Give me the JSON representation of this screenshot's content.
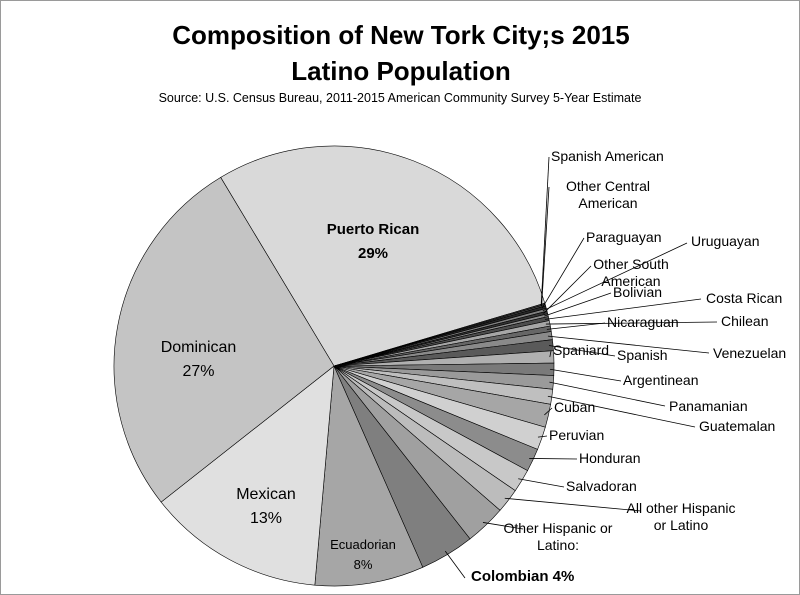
{
  "chart_data": {
    "type": "pie",
    "title": "Composition of New Tork City;s 2015 Latino Population",
    "subtitle": "Source: U.S. Census Bureau, 2011-2015 American Community Survey 5-Year Estimate",
    "categories": [
      "Puerto Rican",
      "Spanish American",
      "Other Central American",
      "Paraguayan",
      "Uruguayan",
      "Other South American",
      "Bolivian",
      "Costa Rican",
      "Chilean",
      "Nicaraguan",
      "Venezuelan",
      "Spanish",
      "Spaniard",
      "Argentinean",
      "Panamanian",
      "Guatemalan",
      "Cuban",
      "Peruvian",
      "Honduran",
      "Salvadoran",
      "All other Hispanic or Latino",
      "Other Hispanic or Latino:",
      "Colombian",
      "Ecuadorian",
      "Mexican",
      "Dominican"
    ],
    "values": [
      29,
      0.1,
      0.1,
      0.2,
      0.2,
      0.2,
      0.2,
      0.3,
      0.4,
      0.4,
      0.6,
      0.8,
      0.9,
      0.9,
      1.0,
      1.1,
      1.7,
      1.7,
      1.7,
      1.7,
      1.8,
      3,
      4,
      8,
      13,
      27
    ],
    "value_labels": [
      "29%",
      null,
      null,
      null,
      null,
      null,
      null,
      null,
      null,
      null,
      null,
      null,
      null,
      null,
      null,
      null,
      null,
      null,
      null,
      null,
      null,
      null,
      "4%",
      "8%",
      "13%",
      "27%"
    ],
    "colors": [
      "#d9d9d9",
      "#404040",
      "#595959",
      "#262626",
      "#7f7f7f",
      "#333333",
      "#8c8c8c",
      "#4d4d4d",
      "#a6a6a6",
      "#666666",
      "#8a8a8a",
      "#5a5a5a",
      "#b0b0b0",
      "#7a7a7a",
      "#9a9a9a",
      "#bfbfbf",
      "#a6a6a6",
      "#d0d0d0",
      "#8c8c8c",
      "#c8c8c8",
      "#bcbcbc",
      "#a0a0a0",
      "#7f7f7f",
      "#a6a6a6",
      "#e0e0e0",
      "#c4c4c4"
    ]
  }
}
